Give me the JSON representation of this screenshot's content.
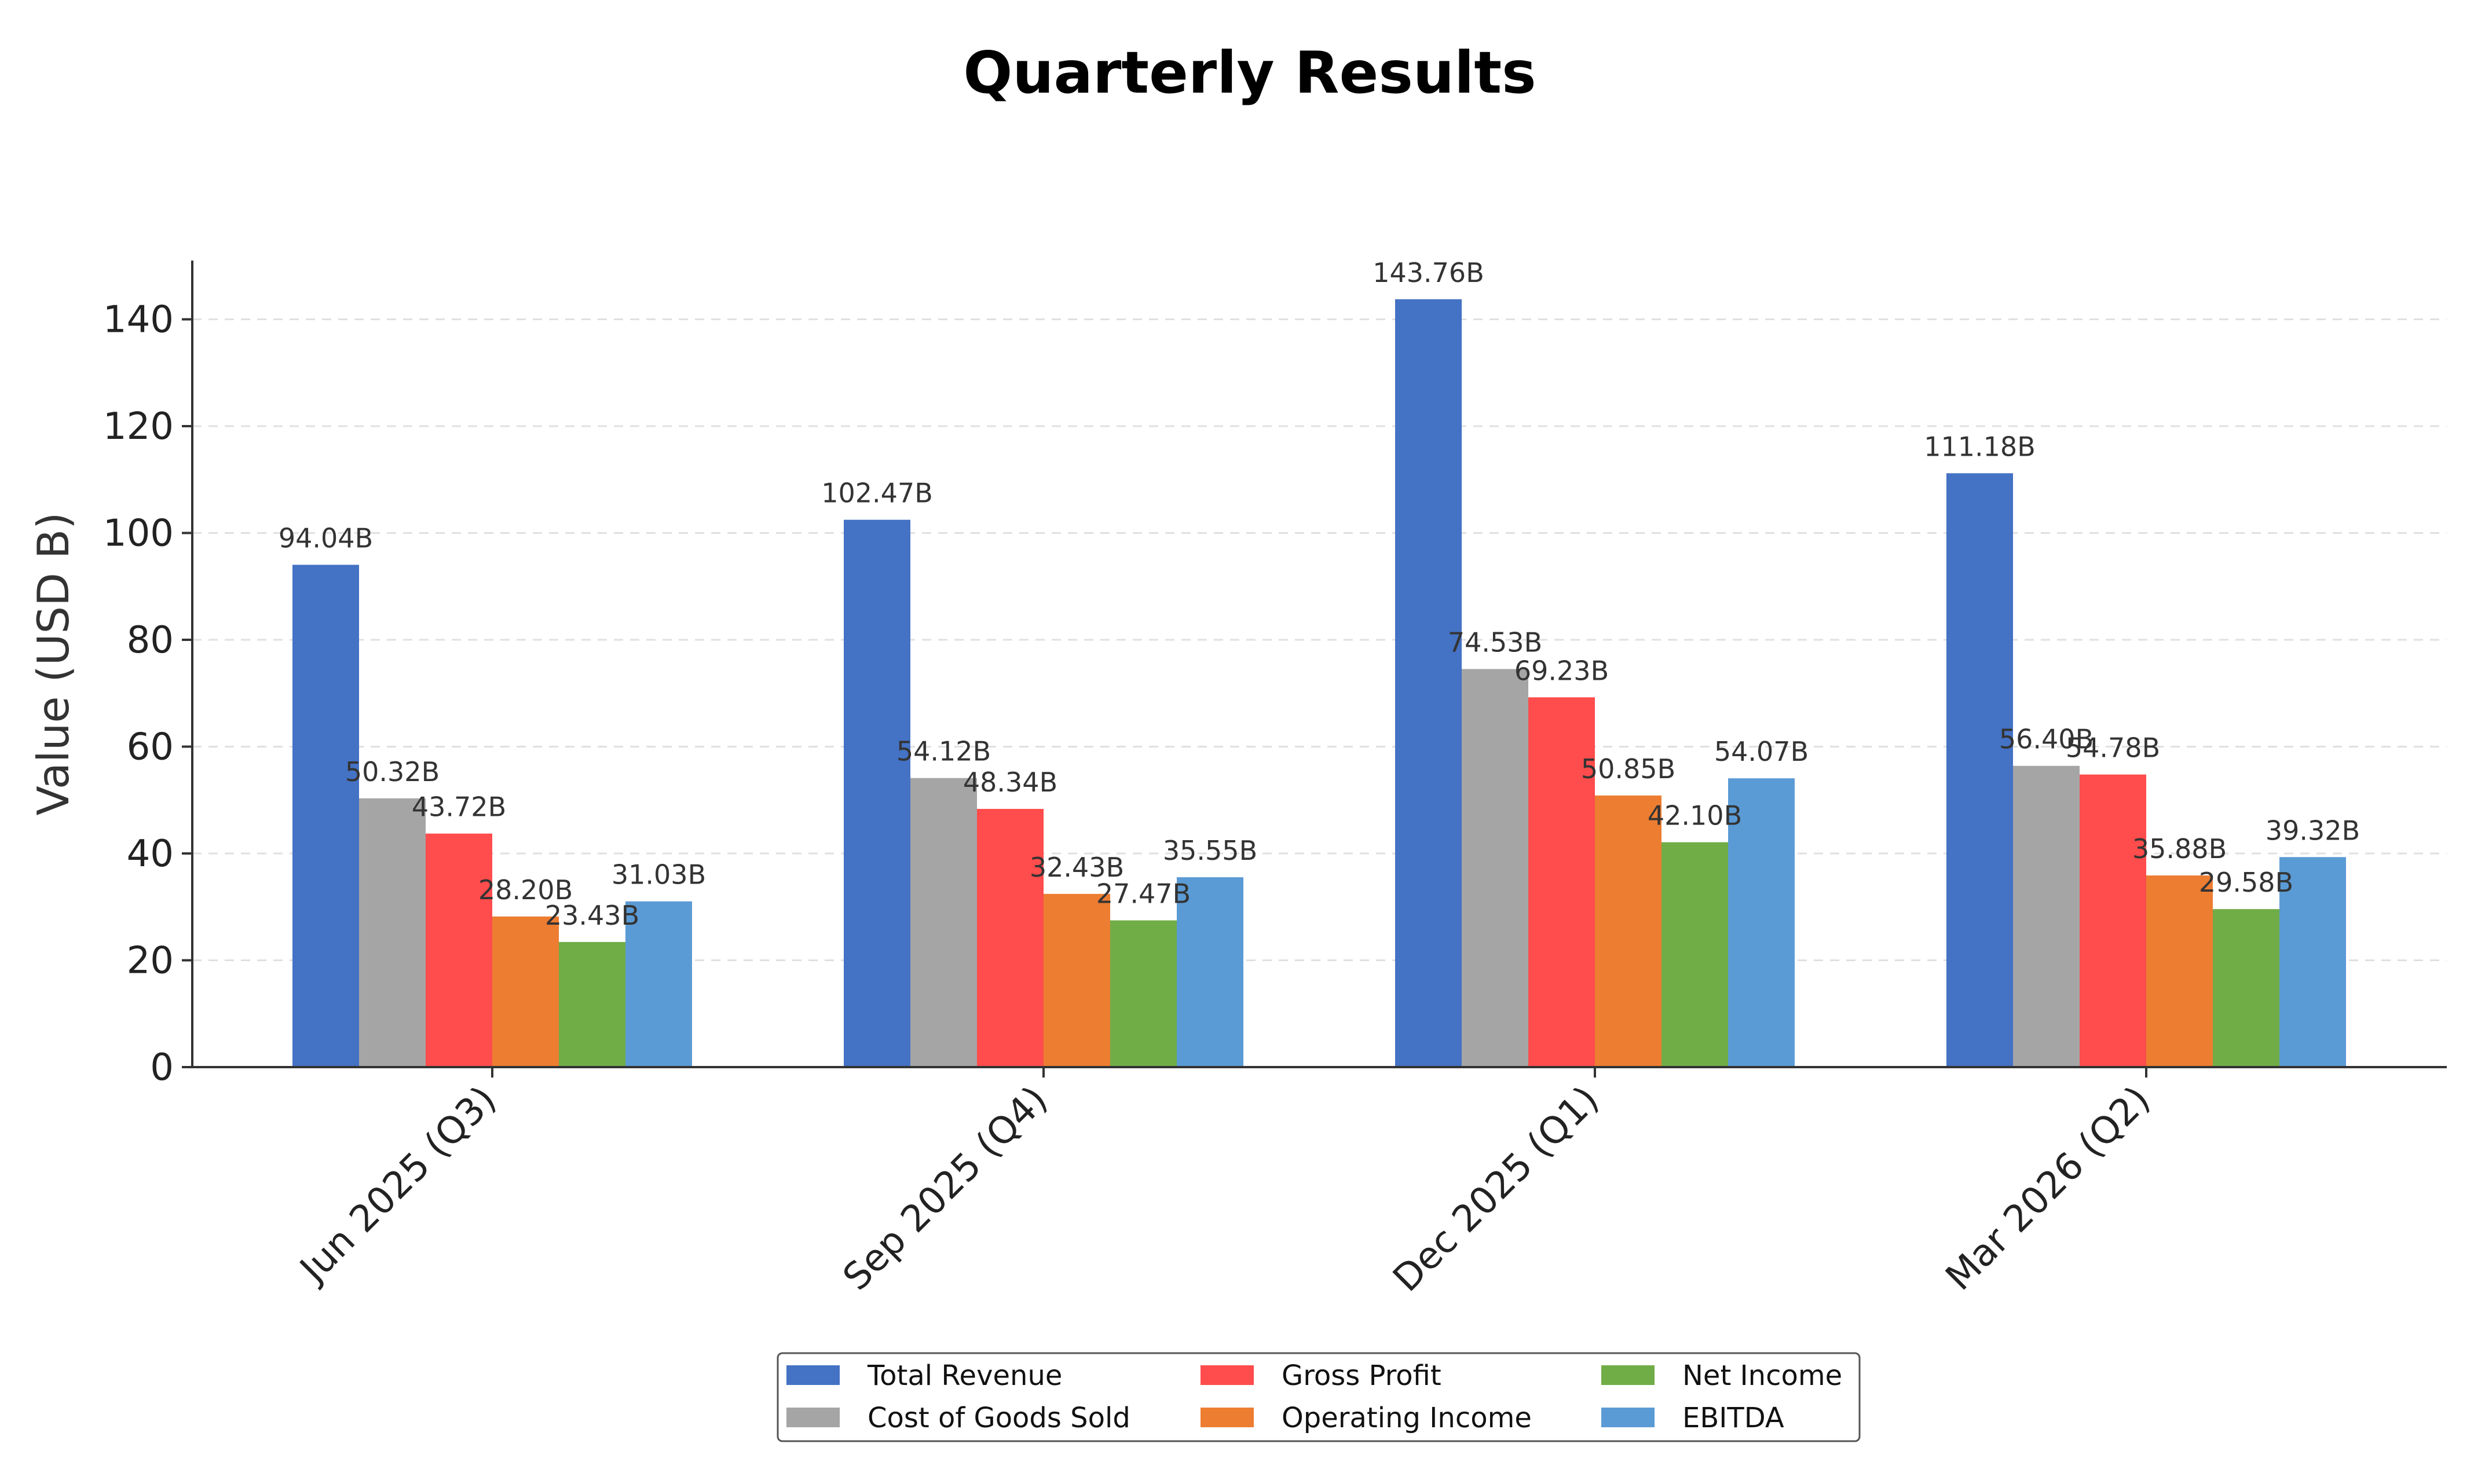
{
  "chart_data": {
    "type": "bar",
    "title": "Quarterly Results",
    "ylabel": "Value (USD B)",
    "xlabel": "",
    "ylim": [
      0,
      151
    ],
    "yticks": [
      0,
      20,
      40,
      60,
      80,
      100,
      120,
      140
    ],
    "grid": true,
    "legend_position": "bottom-center",
    "categories": [
      "Jun 2025 (Q3)",
      "Sep 2025 (Q4)",
      "Dec 2025 (Q1)",
      "Mar 2026 (Q2)"
    ],
    "series": [
      {
        "name": "Total Revenue",
        "color": "#4472C4",
        "values": [
          94.04,
          102.47,
          143.76,
          111.18
        ],
        "labels": [
          "94.04B",
          "102.47B",
          "143.76B",
          "111.18B"
        ]
      },
      {
        "name": "Cost of Goods Sold",
        "color": "#A5A5A5",
        "values": [
          50.32,
          54.12,
          74.53,
          56.4
        ],
        "labels": [
          "50.32B",
          "54.12B",
          "74.53B",
          "56.40B"
        ]
      },
      {
        "name": "Gross Profit",
        "color": "#FF4C4C",
        "values": [
          43.72,
          48.34,
          69.23,
          54.78
        ],
        "labels": [
          "43.72B",
          "48.34B",
          "69.23B",
          "54.78B"
        ]
      },
      {
        "name": "Operating Income",
        "color": "#ED7D31",
        "values": [
          28.2,
          32.43,
          50.85,
          35.88
        ],
        "labels": [
          "28.20B",
          "32.43B",
          "50.85B",
          "35.88B"
        ]
      },
      {
        "name": "Net Income",
        "color": "#70AD47",
        "values": [
          23.43,
          27.47,
          42.1,
          29.58
        ],
        "labels": [
          "23.43B",
          "27.47B",
          "42.10B",
          "29.58B"
        ]
      },
      {
        "name": "EBITDA",
        "color": "#5B9BD5",
        "values": [
          31.03,
          35.55,
          54.07,
          39.32
        ],
        "labels": [
          "31.03B",
          "35.55B",
          "54.07B",
          "39.32B"
        ]
      }
    ]
  }
}
